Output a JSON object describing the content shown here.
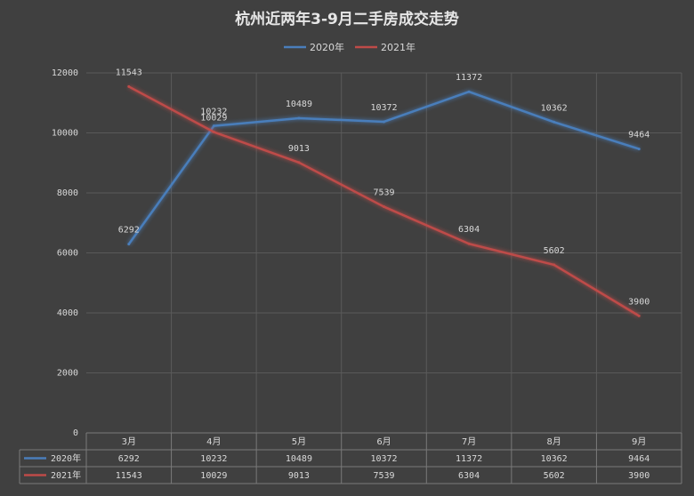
{
  "chart_data": {
    "type": "line",
    "title": "杭州近两年3-9月二手房成交走势",
    "categories": [
      "3月",
      "4月",
      "5月",
      "6月",
      "7月",
      "8月",
      "9月"
    ],
    "series": [
      {
        "name": "2020年",
        "color": "#4a7ebb",
        "values": [
          6292,
          10232,
          10489,
          10372,
          11372,
          10362,
          9464
        ]
      },
      {
        "name": "2021年",
        "color": "#be4b48",
        "values": [
          11543,
          10029,
          9013,
          7539,
          6304,
          5602,
          3900
        ]
      }
    ],
    "yticks": [
      0,
      2000,
      4000,
      6000,
      8000,
      10000,
      12000
    ],
    "ylim": [
      0,
      12000
    ],
    "legend": "top",
    "data_table": true,
    "grid": true
  }
}
